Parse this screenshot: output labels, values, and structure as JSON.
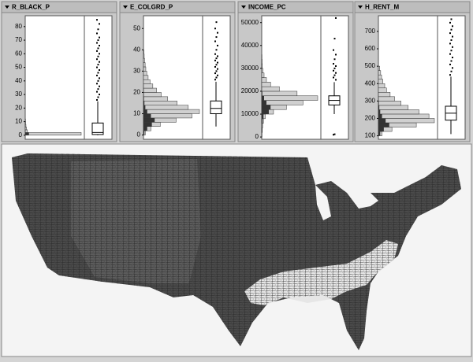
{
  "panels": [
    {
      "title": "R_BLACK_P",
      "ylim": [
        -3,
        88
      ],
      "yticks": [
        0,
        10,
        20,
        30,
        40,
        50,
        60,
        70,
        80
      ],
      "bins": [
        0,
        2,
        4,
        6,
        8,
        10,
        12
      ],
      "counts": [
        3000,
        120,
        70,
        40,
        25,
        15
      ],
      "selected": [
        200,
        10,
        5,
        3,
        2,
        1
      ],
      "box": {
        "whisker_low": 0,
        "q1": 0.5,
        "median": 2,
        "q3": 9,
        "whisker_high": 25
      },
      "outliers": [
        26,
        28,
        30,
        32,
        34,
        36,
        38,
        40,
        42,
        44,
        46,
        48,
        50,
        52,
        54,
        56,
        58,
        60,
        62,
        64,
        66,
        68,
        70,
        72,
        75,
        78,
        82,
        85
      ]
    },
    {
      "title": "E_COLGRD_P",
      "ylim": [
        -2,
        56
      ],
      "yticks": [
        0,
        10,
        20,
        30,
        40,
        50
      ],
      "bins": [
        0,
        2,
        4,
        6,
        8,
        10,
        12,
        14,
        16,
        18,
        20,
        22,
        24,
        26,
        28,
        30,
        32,
        34,
        36,
        38,
        40
      ],
      "counts": [
        20,
        80,
        180,
        350,
        520,
        600,
        480,
        360,
        260,
        190,
        140,
        100,
        70,
        50,
        35,
        25,
        18,
        12,
        8,
        5
      ],
      "selected": [
        10,
        40,
        90,
        120,
        80,
        40,
        20,
        10,
        5,
        3,
        2,
        1,
        0,
        0,
        0,
        0,
        0,
        0,
        0,
        0
      ],
      "box": {
        "whisker_low": 4,
        "q1": 10,
        "median": 12.5,
        "q3": 16,
        "whisker_high": 25
      },
      "outliers": [
        26,
        27,
        28,
        29,
        30,
        31,
        32,
        33,
        34,
        35,
        36,
        37,
        38,
        40,
        42,
        44,
        46,
        48,
        50,
        53
      ]
    },
    {
      "title": "INCOME_PC",
      "ylim": [
        -1000,
        53000
      ],
      "yticks": [
        0,
        10000,
        20000,
        30000,
        40000,
        50000
      ],
      "bins": [
        0,
        2000,
        4000,
        6000,
        8000,
        10000,
        12000,
        14000,
        16000,
        18000,
        20000,
        22000,
        24000,
        26000,
        28000,
        30000,
        32000,
        34000,
        36000
      ],
      "counts": [
        5,
        10,
        15,
        30,
        60,
        200,
        420,
        700,
        950,
        600,
        300,
        150,
        80,
        40,
        20,
        10,
        6,
        4
      ],
      "selected": [
        2,
        5,
        8,
        15,
        30,
        120,
        150,
        80,
        40,
        10,
        2,
        0,
        0,
        0,
        0,
        0,
        0,
        0
      ],
      "box": {
        "whisker_low": 10000,
        "q1": 14000,
        "median": 16000,
        "q3": 18000,
        "whisker_high": 24000
      },
      "outliers": [
        1000,
        1200,
        25000,
        26000,
        27000,
        28000,
        29000,
        30000,
        31000,
        32000,
        34000,
        36000,
        38000,
        43000,
        52000
      ]
    },
    {
      "title": "H_RENT_M",
      "ylim": [
        80,
        790
      ],
      "yticks": [
        100,
        200,
        300,
        400,
        500,
        600,
        700
      ],
      "bins": [
        100,
        125,
        150,
        175,
        200,
        225,
        250,
        275,
        300,
        325,
        350,
        375,
        400,
        425,
        450,
        475,
        500
      ],
      "counts": [
        40,
        150,
        420,
        620,
        560,
        450,
        330,
        250,
        180,
        130,
        90,
        70,
        50,
        35,
        25,
        15
      ],
      "selected": [
        20,
        60,
        120,
        80,
        40,
        20,
        10,
        5,
        2,
        1,
        0,
        0,
        0,
        0,
        0,
        0
      ],
      "box": {
        "whisker_low": 110,
        "q1": 190,
        "median": 230,
        "q3": 270,
        "whisker_high": 440
      },
      "outliers": [
        450,
        470,
        490,
        510,
        530,
        550,
        570,
        590,
        610,
        630,
        650,
        670,
        690,
        710,
        730,
        750,
        770
      ]
    }
  ]
}
